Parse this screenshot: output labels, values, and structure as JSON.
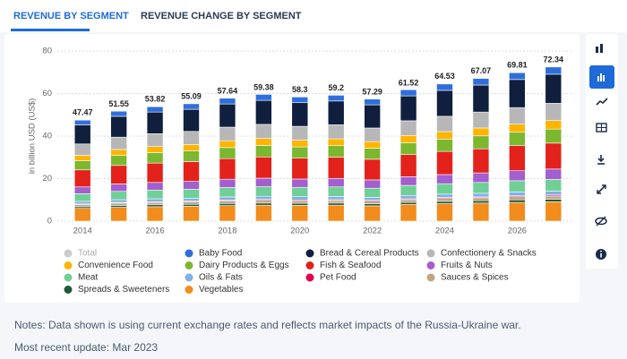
{
  "tabs": [
    "REVENUE BY SEGMENT",
    "REVENUE CHANGE BY SEGMENT"
  ],
  "notes": [
    "Notes: Data shown is using current exchange rates and reflects market impacts of the Russia-Ukraine war.",
    "Most recent update: Mar 2023"
  ],
  "chart_data": {
    "type": "stacked_bar",
    "y_label": "in billion USD (US$)",
    "categories": [
      "2014",
      null,
      "2016",
      null,
      "2018",
      null,
      "2020",
      null,
      "2022",
      null,
      "2024",
      null,
      "2026",
      null
    ],
    "ylim": [
      0,
      80
    ],
    "yticks": [
      0,
      20,
      40,
      60,
      80
    ],
    "grid": true,
    "series": [
      {
        "name": "Total",
        "color": "#cccccc",
        "visible": false,
        "values": [
          47.47,
          51.55,
          53.82,
          55.09,
          57.64,
          59.38,
          58.3,
          59.2,
          57.29,
          61.52,
          64.53,
          67.07,
          69.81,
          72.34
        ]
      },
      {
        "name": "Baby Food",
        "color": "#2f6fdc",
        "values": [
          2.2,
          2.4,
          2.5,
          2.6,
          2.7,
          2.8,
          2.7,
          2.7,
          2.7,
          2.9,
          3.0,
          3.1,
          3.2,
          3.4
        ]
      },
      {
        "name": "Bread & Cereal Products",
        "color": "#0f1f3d",
        "values": [
          9.0,
          9.8,
          10.2,
          10.4,
          10.9,
          11.3,
          11.1,
          11.2,
          10.9,
          11.7,
          12.2,
          12.7,
          13.2,
          13.7
        ]
      },
      {
        "name": "Confectionery & Snacks",
        "color": "#b7b7b7",
        "values": [
          5.3,
          5.8,
          6.0,
          6.2,
          6.4,
          6.6,
          6.5,
          6.6,
          6.4,
          6.9,
          7.2,
          7.5,
          7.8,
          8.1
        ]
      },
      {
        "name": "Convenience Food",
        "color": "#ffb400",
        "values": [
          2.6,
          2.8,
          2.9,
          3.0,
          3.2,
          3.3,
          3.2,
          3.2,
          3.1,
          3.4,
          3.5,
          3.7,
          3.8,
          4.0
        ]
      },
      {
        "name": "Dairy Products & Eggs",
        "color": "#7cb82f",
        "values": [
          4.3,
          4.7,
          4.9,
          5.0,
          5.2,
          5.4,
          5.3,
          5.4,
          5.2,
          5.6,
          5.8,
          6.1,
          6.3,
          6.6
        ]
      },
      {
        "name": "Fish & Seafood",
        "color": "#e3221b",
        "values": [
          8.0,
          8.7,
          9.1,
          9.3,
          9.7,
          10.0,
          9.8,
          10.0,
          9.7,
          10.4,
          10.9,
          11.3,
          11.8,
          12.2
        ]
      },
      {
        "name": "Fruits & Nuts",
        "color": "#a35ed0",
        "values": [
          3.2,
          3.5,
          3.6,
          3.7,
          3.9,
          4.0,
          3.9,
          4.0,
          3.9,
          4.1,
          4.3,
          4.5,
          4.7,
          4.9
        ]
      },
      {
        "name": "Meat",
        "color": "#6fcf97",
        "values": [
          3.6,
          3.9,
          4.1,
          4.2,
          4.4,
          4.5,
          4.4,
          4.5,
          4.3,
          4.7,
          4.9,
          5.1,
          5.3,
          5.5
        ]
      },
      {
        "name": "Oils & Fats",
        "color": "#7fb2e5",
        "values": [
          1.2,
          1.3,
          1.4,
          1.4,
          1.5,
          1.5,
          1.5,
          1.5,
          1.4,
          1.6,
          1.6,
          1.7,
          1.8,
          1.8
        ]
      },
      {
        "name": "Pet Food",
        "color": "#e6004c",
        "values": [
          0.3,
          0.3,
          0.3,
          0.3,
          0.4,
          0.4,
          0.4,
          0.4,
          0.4,
          0.4,
          0.4,
          0.4,
          0.4,
          0.5
        ]
      },
      {
        "name": "Sauces & Spices",
        "color": "#c4a484",
        "values": [
          1.0,
          1.1,
          1.1,
          1.2,
          1.2,
          1.3,
          1.2,
          1.2,
          1.2,
          1.3,
          1.4,
          1.4,
          1.5,
          1.5
        ]
      },
      {
        "name": "Spreads & Sweeteners",
        "color": "#1e5b3a",
        "values": [
          0.8,
          0.9,
          0.9,
          0.9,
          1.0,
          1.0,
          1.0,
          1.0,
          1.0,
          1.0,
          1.1,
          1.1,
          1.2,
          1.2
        ]
      },
      {
        "name": "Vegetables",
        "color": "#f28c1c",
        "values": [
          6.0,
          6.5,
          6.8,
          7.0,
          7.3,
          7.5,
          7.4,
          7.5,
          7.2,
          7.8,
          8.2,
          8.5,
          8.8,
          9.1
        ]
      }
    ]
  }
}
